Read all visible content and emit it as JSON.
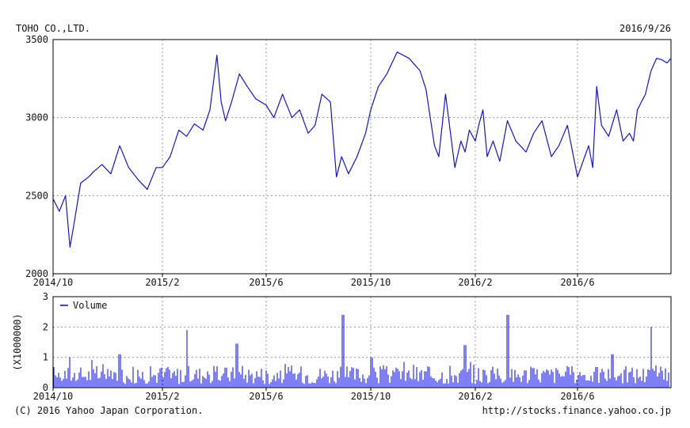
{
  "header": {
    "company": "TOHO CO.,LTD.",
    "date": "2016/9/26"
  },
  "footer": {
    "copyright": "(C) 2016 Yahoo Japan Corporation.",
    "url": "http://stocks.finance.yahoo.co.jp"
  },
  "colors": {
    "line": "#1414c8",
    "volume": "#0000ee",
    "grid": "#9a9a9a",
    "axis": "#000000"
  },
  "chart_data": [
    {
      "type": "line",
      "title": "TOHO CO.,LTD.",
      "x_tick_labels": [
        "2014/10",
        "2015/2",
        "2015/6",
        "2015/10",
        "2016/2",
        "2016/6"
      ],
      "y_tick_labels": [
        "2000",
        "2500",
        "3000",
        "3500"
      ],
      "ylim": [
        2000,
        3500
      ],
      "grid": true,
      "series": [
        {
          "x": [
            "2014/10/01",
            "2014/10/08",
            "2014/10/15",
            "2014/10/20",
            "2014/10/24",
            "2014/11/01",
            "2014/11/10",
            "2014/11/15",
            "2014/11/25",
            "2014/12/05",
            "2014/12/15",
            "2014/12/25",
            "2015/01/05",
            "2015/01/15",
            "2015/01/25",
            "2015/02/01",
            "2015/02/10",
            "2015/02/20",
            "2015/03/01",
            "2015/03/10",
            "2015/03/20",
            "2015/03/28",
            "2015/04/05",
            "2015/04/10",
            "2015/04/15",
            "2015/04/22",
            "2015/05/01",
            "2015/05/10",
            "2015/05/20",
            "2015/06/01",
            "2015/06/10",
            "2015/06/20",
            "2015/07/01",
            "2015/07/10",
            "2015/07/20",
            "2015/07/28",
            "2015/08/05",
            "2015/08/15",
            "2015/08/22",
            "2015/08/28",
            "2015/09/05",
            "2015/09/15",
            "2015/09/25",
            "2015/10/01",
            "2015/10/10",
            "2015/10/20",
            "2015/11/01",
            "2015/11/15",
            "2015/11/28",
            "2015/12/05",
            "2015/12/10",
            "2015/12/15",
            "2015/12/20",
            "2015/12/28",
            "2016/01/08",
            "2016/01/15",
            "2016/01/20",
            "2016/01/25",
            "2016/02/01",
            "2016/02/05",
            "2016/02/10",
            "2016/02/15",
            "2016/02/22",
            "2016/03/01",
            "2016/03/10",
            "2016/03/20",
            "2016/04/01",
            "2016/04/10",
            "2016/04/20",
            "2016/05/01",
            "2016/05/10",
            "2016/05/20",
            "2016/06/01",
            "2016/06/10",
            "2016/06/15",
            "2016/06/20",
            "2016/06/25",
            "2016/07/01",
            "2016/07/10",
            "2016/07/20",
            "2016/07/28",
            "2016/08/05",
            "2016/08/10",
            "2016/08/15",
            "2016/08/20",
            "2016/08/25",
            "2016/09/01",
            "2016/09/08",
            "2016/09/15",
            "2016/09/21",
            "2016/09/26"
          ],
          "y": [
            2480,
            2400,
            2500,
            2170,
            2300,
            2580,
            2620,
            2650,
            2700,
            2640,
            2820,
            2680,
            2600,
            2540,
            2680,
            2680,
            2750,
            2920,
            2880,
            2960,
            2920,
            3050,
            3400,
            3100,
            2980,
            3100,
            3280,
            3200,
            3120,
            3080,
            3000,
            3150,
            3000,
            3050,
            2900,
            2950,
            3150,
            3100,
            2620,
            2750,
            2640,
            2750,
            2900,
            3050,
            3200,
            3280,
            3420,
            3380,
            3300,
            3180,
            3000,
            2820,
            2750,
            3150,
            2680,
            2850,
            2780,
            2920,
            2850,
            2950,
            3050,
            2750,
            2850,
            2720,
            2980,
            2850,
            2780,
            2900,
            2980,
            2750,
            2820,
            2950,
            2620,
            2750,
            2820,
            2680,
            3200,
            2950,
            2880,
            3050,
            2850,
            2900,
            2850,
            3050,
            3100,
            3150,
            3300,
            3380,
            3370,
            3350,
            3380
          ]
        }
      ]
    },
    {
      "type": "bar",
      "series_name": "Volume",
      "y_unit_label": "(X1000000)",
      "x_tick_labels": [
        "2014/10",
        "2015/2",
        "2015/6",
        "2015/10",
        "2016/2",
        "2016/6"
      ],
      "y_tick_labels": [
        "0",
        "1",
        "2",
        "3"
      ],
      "ylim": [
        0,
        3
      ],
      "grid": true,
      "typical_range": [
        0.2,
        0.8
      ],
      "spikes": [
        {
          "date": "2014/10/20",
          "value": 1.0
        },
        {
          "date": "2014/12/15",
          "value": 1.1
        },
        {
          "date": "2015/03/01",
          "value": 1.9
        },
        {
          "date": "2015/04/28",
          "value": 1.45
        },
        {
          "date": "2015/08/30",
          "value": 2.4
        },
        {
          "date": "2015/10/02",
          "value": 1.0
        },
        {
          "date": "2016/01/20",
          "value": 1.4
        },
        {
          "date": "2016/03/10",
          "value": 2.4
        },
        {
          "date": "2016/07/15",
          "value": 1.1
        },
        {
          "date": "2016/09/01",
          "value": 2.0
        }
      ]
    }
  ]
}
